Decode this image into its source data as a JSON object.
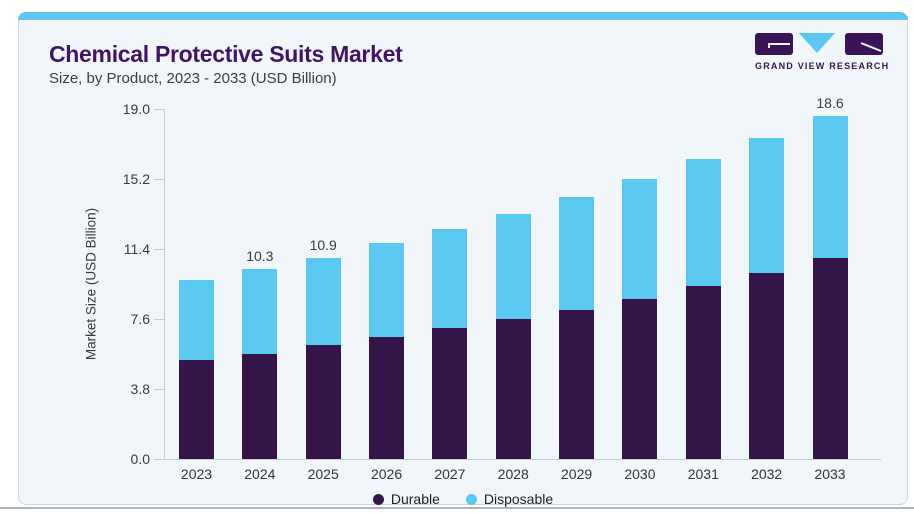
{
  "header": {
    "title": "Chemical Protective Suits Market",
    "subtitle": "Size, by Product, 2023 - 2033 (USD Billion)"
  },
  "logo": {
    "text": "GRAND VIEW RESEARCH"
  },
  "colors": {
    "durable": "#341449",
    "disposable": "#5bc8f2",
    "title_purple": "#421466",
    "logo_purple": "#3a1456",
    "card_background": "#f0f6fa",
    "top_strip": "#5bc8f2",
    "axis_gray": "#c5ced6"
  },
  "chart_data": {
    "type": "bar",
    "stacked": true,
    "title": "Chemical Protective Suits Market Size, by Product, 2023 - 2033 (USD Billion)",
    "xlabel": "",
    "ylabel": "Market Size (USD Billion)",
    "categories": [
      "2023",
      "2024",
      "2025",
      "2026",
      "2027",
      "2028",
      "2029",
      "2030",
      "2031",
      "2032",
      "2033"
    ],
    "series": [
      {
        "name": "Durable",
        "color": "#341449",
        "values": [
          5.4,
          5.7,
          6.2,
          6.6,
          7.1,
          7.6,
          8.1,
          8.7,
          9.4,
          10.1,
          10.9
        ]
      },
      {
        "name": "Disposable",
        "color": "#5bc8f2",
        "values": [
          4.3,
          4.6,
          4.7,
          5.1,
          5.4,
          5.7,
          6.1,
          6.5,
          6.9,
          7.3,
          7.7
        ]
      }
    ],
    "totals": [
      9.7,
      10.3,
      10.9,
      11.7,
      12.5,
      13.3,
      14.2,
      15.2,
      16.3,
      17.4,
      18.6
    ],
    "value_labels": [
      "",
      "10.3",
      "10.9",
      "",
      "",
      "",
      "",
      "",
      "",
      "",
      "18.6"
    ],
    "ytick_labels": [
      "0.0",
      "3.8",
      "7.6",
      "11.4",
      "15.2",
      "19.0"
    ],
    "ylim": [
      0,
      19
    ],
    "grid": false,
    "legend": [
      "Durable",
      "Disposable"
    ],
    "legend_position": "bottom"
  }
}
